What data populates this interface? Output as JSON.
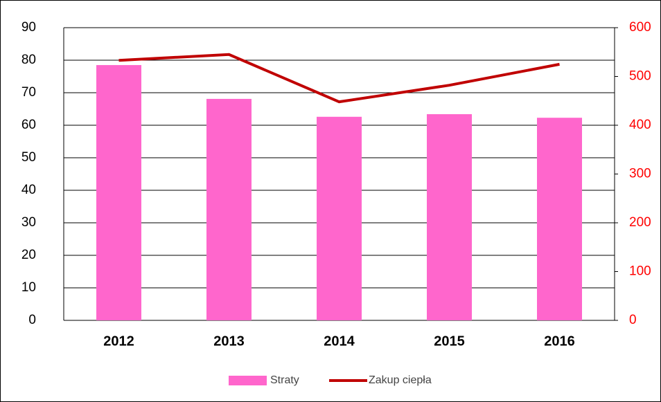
{
  "chart_data": {
    "type": "bar",
    "categories": [
      "2012",
      "2013",
      "2014",
      "2015",
      "2016"
    ],
    "series": [
      {
        "name": "Straty",
        "color": "#ff66cc",
        "values": [
          78.5,
          68.1,
          62.6,
          63.4,
          62.3
        ]
      },
      {
        "name": "Zakup ciepła",
        "color": "#c00000",
        "type": "line",
        "axis": "y2",
        "values": [
          533,
          545,
          448,
          482,
          525
        ]
      }
    ],
    "ylim": [
      0,
      90
    ],
    "yticks": [
      0,
      10,
      20,
      30,
      40,
      50,
      60,
      70,
      80,
      90
    ],
    "y2lim": [
      0,
      600
    ],
    "y2ticks": [
      0,
      100,
      200,
      300,
      400,
      500,
      600
    ],
    "y2color": "#ff0000",
    "grid": true,
    "legend": "bottom"
  }
}
